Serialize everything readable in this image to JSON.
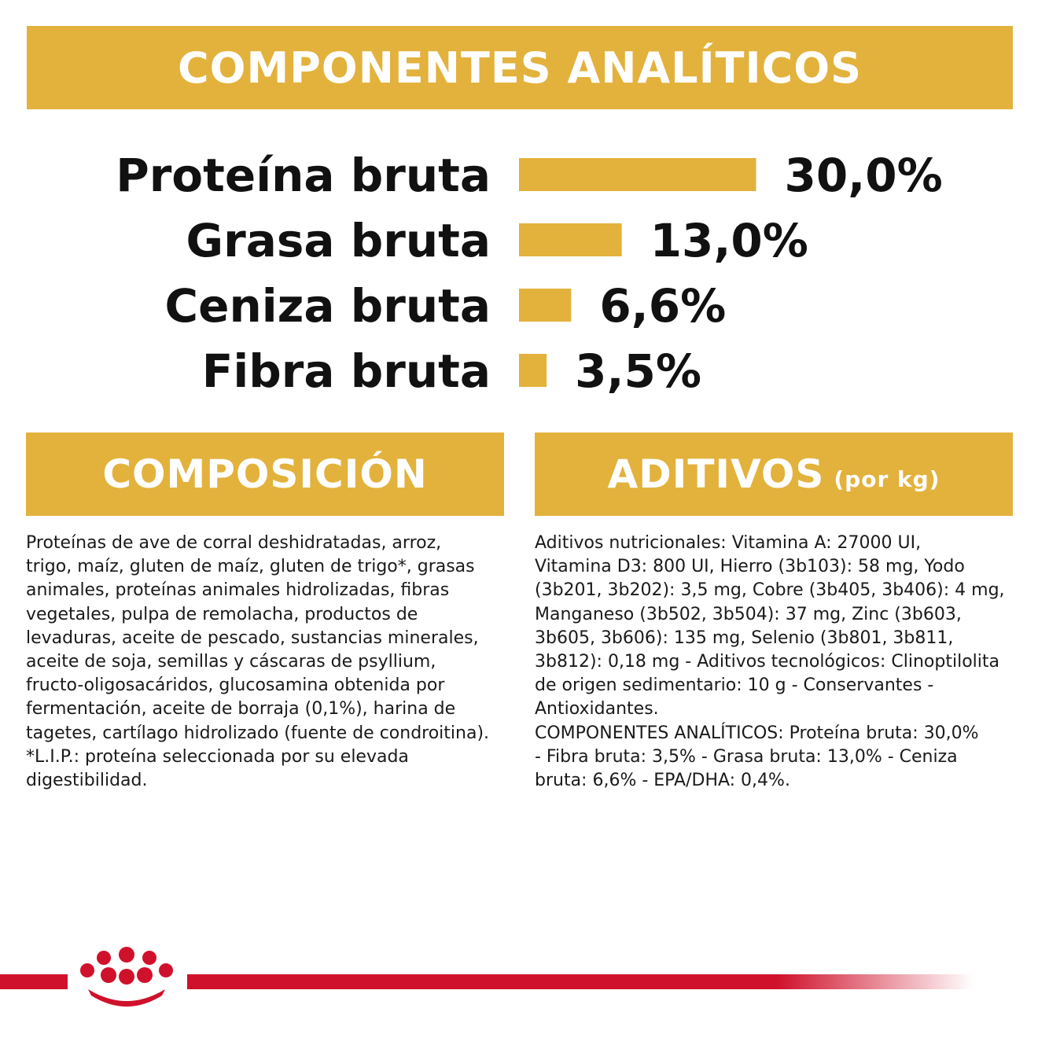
{
  "header": {
    "title": "COMPONENTES ANALÍTICOS"
  },
  "chart_data": {
    "type": "bar",
    "orientation": "horizontal",
    "categories": [
      "Proteína bruta",
      "Grasa bruta",
      "Ceniza bruta",
      "Fibra bruta"
    ],
    "values": [
      30.0,
      13.0,
      6.6,
      3.5
    ],
    "value_labels": [
      "30,0%",
      "13,0%",
      "6,6%",
      "3,5%"
    ],
    "unit": "%",
    "bar_color": "#E3B23C",
    "grid": false
  },
  "composition": {
    "title": "COMPOSICIÓN",
    "text": "Proteínas de ave de corral deshidratadas, arroz,\ntrigo, maíz, gluten de maíz, gluten de trigo*, grasas\nanimales, proteínas animales hidrolizadas, fibras\nvegetales, pulpa de remolacha, productos de\nlevaduras, aceite de pescado, sustancias minerales,\naceite de soja, semillas y cáscaras de psyllium,\nfructo-oligosacáridos, glucosamina obtenida por\nfermentación, aceite de borraja (0,1%), harina de\ntagetes, cartílago hidrolizado (fuente de condroitina).\n*L.I.P.: proteína seleccionada por su elevada\ndigestibilidad."
  },
  "additives": {
    "title": "ADITIVOS",
    "title_suffix": "(por kg)",
    "text": "Aditivos nutricionales: Vitamina A: 27000 UI,\nVitamina D3: 800 UI, Hierro (3b103): 58 mg, Yodo\n(3b201, 3b202): 3,5 mg, Cobre (3b405, 3b406): 4 mg,\nManganeso (3b502, 3b504): 37 mg, Zinc (3b603,\n3b605, 3b606): 135 mg, Selenio (3b801, 3b811,\n3b812): 0,18 mg - Aditivos tecnológicos: Clinoptilolita\nde origen sedimentario: 10 g - Conservantes -\nAntioxidantes.\nCOMPONENTES ANALÍTICOS: Proteína bruta: 30,0%\n- Fibra bruta: 3,5% - Grasa bruta: 13,0% - Ceniza\nbruta: 6,6% - EPA/DHA: 0,4%."
  },
  "colors": {
    "accent": "#E3B23C",
    "brand_red": "#D0112B",
    "text": "#111111"
  },
  "footer": {
    "logo": "crown-icon"
  }
}
